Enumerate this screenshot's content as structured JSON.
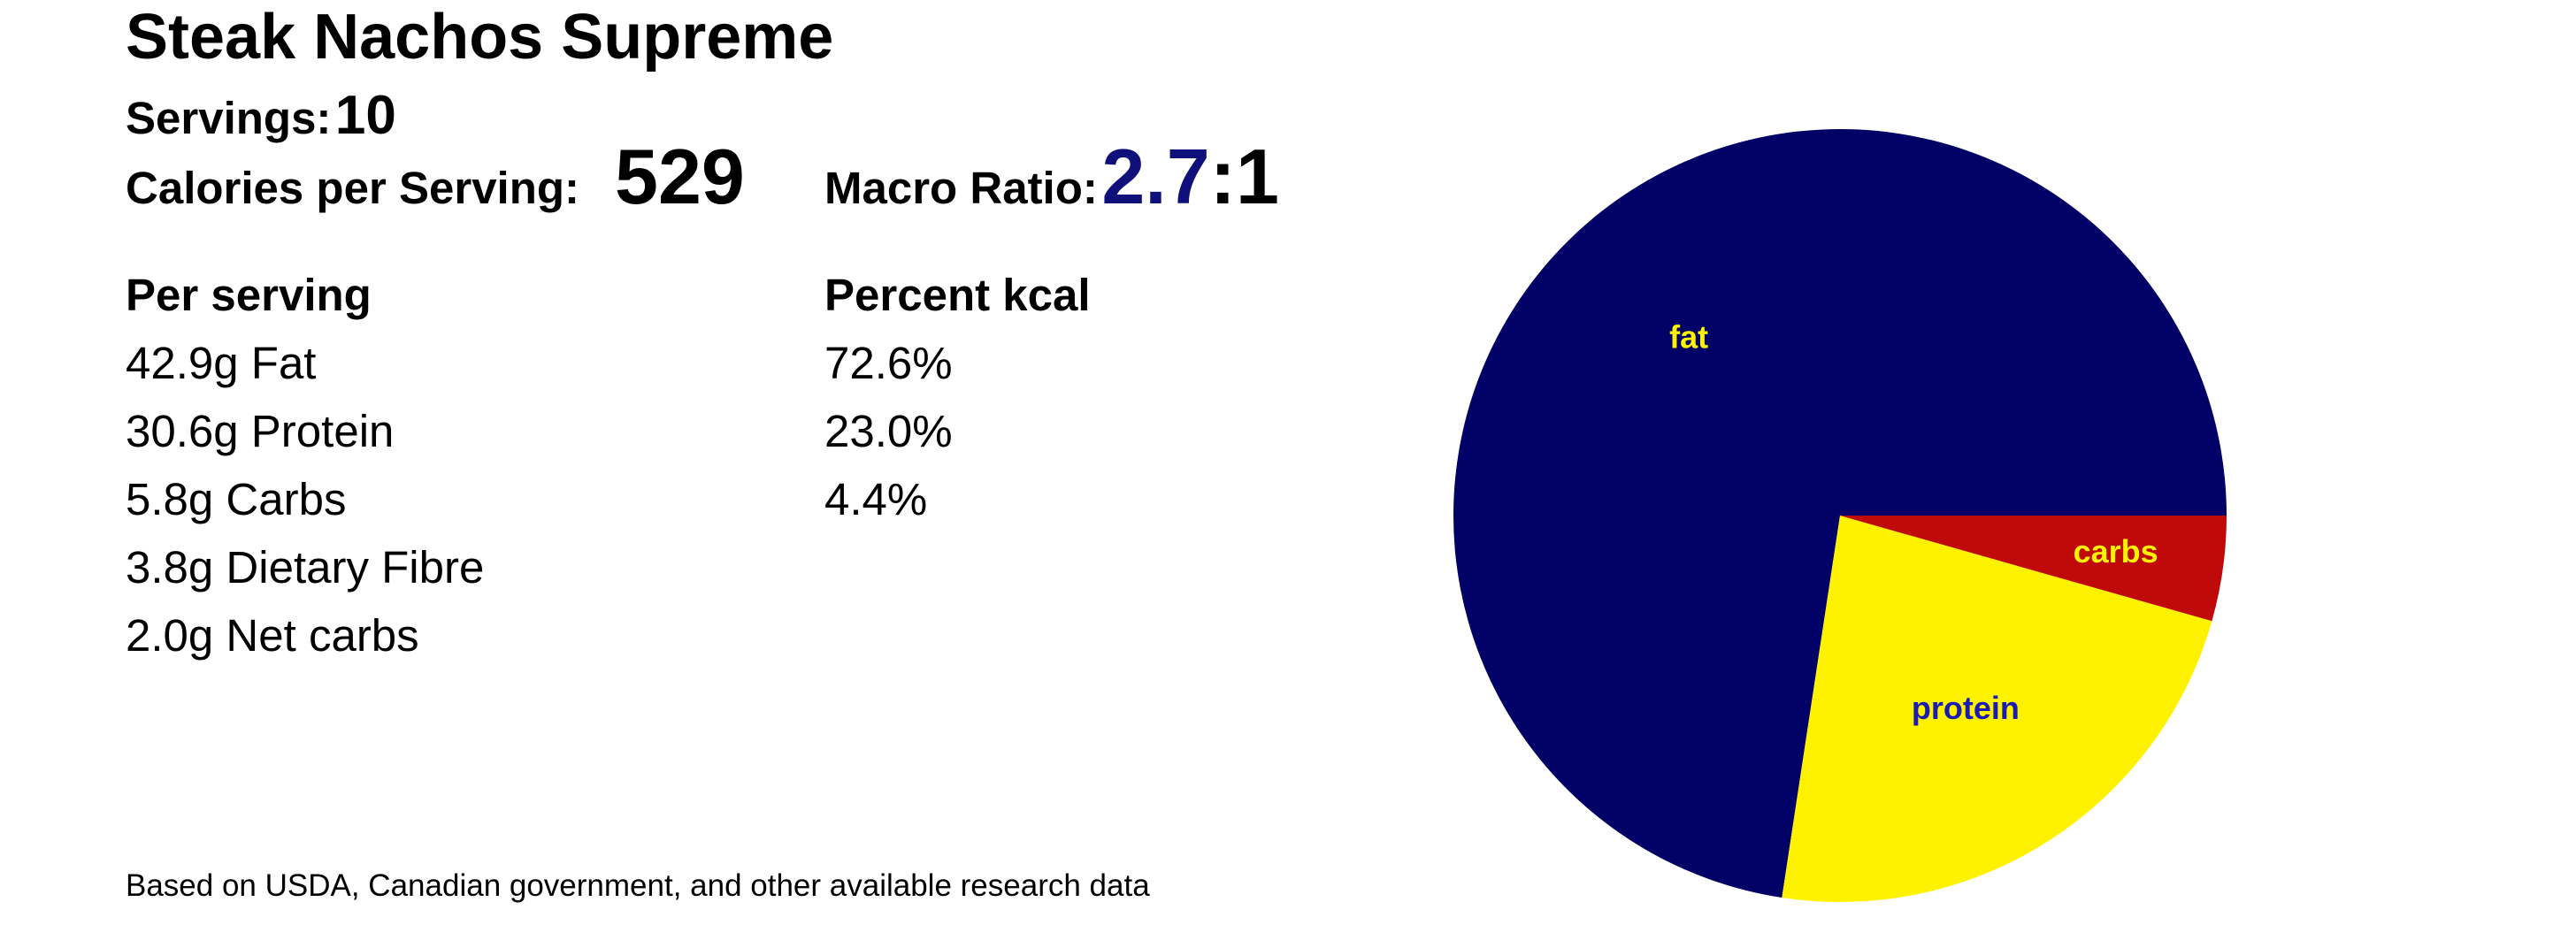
{
  "recipe": {
    "title": "Steak Nachos Supreme",
    "servings_label": "Servings:",
    "servings_value": "10",
    "calories_label": "Calories per Serving:",
    "calories_value": "529",
    "ratio_label": "Macro Ratio:",
    "ratio_value": "2.7",
    "ratio_suffix": ":1"
  },
  "per_serving": {
    "heading": "Per serving",
    "rows": [
      "42.9g Fat",
      "30.6g Protein",
      "5.8g Carbs",
      "3.8g Dietary Fibre",
      "2.0g Net carbs"
    ]
  },
  "percent_kcal": {
    "heading": "Percent kcal",
    "rows": [
      "72.6%",
      "23.0%",
      "4.4%"
    ]
  },
  "footnote": "Based on USDA, Canadian government, and other available research data",
  "colors": {
    "ratio_accent": "#10107a",
    "fat": "#000066",
    "protein": "#fff200",
    "carbs": "#c00a0a",
    "fat_label": "#fff200",
    "protein_label": "#1a1ab5",
    "carbs_label": "#fff200"
  },
  "chart_data": {
    "type": "pie",
    "title": "",
    "series": [
      {
        "name": "fat",
        "value": 72.6
      },
      {
        "name": "protein",
        "value": 23.0
      },
      {
        "name": "carbs",
        "value": 4.4
      }
    ],
    "start_angle_deg": 0,
    "direction": "clockwise-from-east-reversed",
    "legend": "none"
  }
}
